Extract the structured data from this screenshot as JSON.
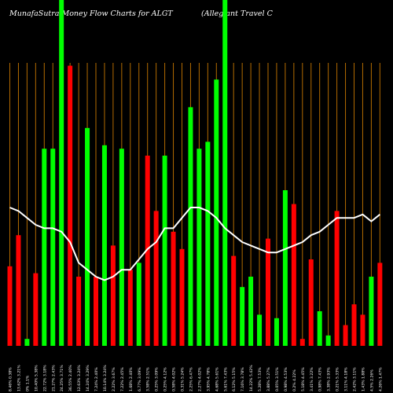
{
  "header": {
    "title": "MunafaSutra  Money Flow  Charts for ALGT",
    "company": "(Allegiant Travel C"
  },
  "chart_data": {
    "type": "bar",
    "title": "MunafaSutra  Money Flow  Charts for ALGT",
    "ylim": [
      0,
      100
    ],
    "grid": "vertical",
    "colors": {
      "up": "#00ff00",
      "down": "#ff0000",
      "grid": "#b36b00",
      "line": "#ffffff",
      "background": "#000000"
    },
    "categories": [
      "8.46% 0.38%",
      "13.62% 3.21%",
      "0% 1.1%",
      "10.40% 5.38%",
      "22.72% 3.18%",
      "21.27% 2.43%",
      "24.25% 3.71%",
      "36.55% 2.40%",
      "12.63% 3.24%",
      "14.24% 3.29%",
      "7.24% 2.40%",
      "10.14% 3.24%",
      "2.22% 3.67%",
      "7.22% 2.45%",
      "1.68% 2.40%",
      "6.77% 3.09%",
      "3.58% 2.51%",
      "0.25% 3.09%",
      "0.25% 4.12%",
      "0.58% 4.02%",
      "0.31% 5.24%",
      "2.25% 6.47%",
      "2.27% 4.02%",
      "3.95% 4.78%",
      "4.68% 5.61%",
      "5.61% 7.43%",
      "6.12% 5.15%",
      "7.16% 3.78%",
      "14.22% 5.42%",
      "5.28% 7.53%",
      "3.88% 5.27%",
      "0.05% 3.51%",
      "0.98% 4.53%",
      "0.2% 4.22%",
      "5.18% 4.45%",
      "3.41% 3.22%",
      "0.98% 7.43%",
      "3.38% 2.93%",
      "0.21% 5.33%",
      "3.11% 4.18%",
      "2.42% 3.11%",
      "1.43% 1.88%",
      "4.5% 2.26%",
      "4.26% 1.47%"
    ],
    "values": [
      23,
      32,
      2,
      21,
      57,
      57,
      100,
      81,
      20,
      63,
      20,
      58,
      29,
      57,
      22,
      24,
      55,
      39,
      55,
      33,
      28,
      69,
      57,
      59,
      77,
      100,
      26,
      17,
      20,
      9,
      31,
      8,
      45,
      41,
      2,
      25,
      10,
      3,
      39,
      6,
      12,
      9,
      20,
      24
    ],
    "bar_colors": [
      "red",
      "red",
      "green",
      "red",
      "green",
      "green",
      "green",
      "red",
      "red",
      "green",
      "red",
      "green",
      "red",
      "green",
      "red",
      "green",
      "red",
      "red",
      "green",
      "red",
      "red",
      "green",
      "green",
      "green",
      "green",
      "green",
      "red",
      "green",
      "green",
      "green",
      "red",
      "green",
      "green",
      "red",
      "red",
      "red",
      "green",
      "green",
      "red",
      "red",
      "red",
      "red",
      "green",
      "red"
    ],
    "series": [
      {
        "name": "",
        "values": [
          40,
          39,
          37,
          35,
          34,
          34,
          33,
          30,
          24,
          22,
          20,
          19,
          20,
          22,
          22,
          25,
          28,
          30,
          34,
          34,
          37,
          40,
          40,
          39,
          37,
          34,
          32,
          30,
          29,
          28,
          27,
          27,
          28,
          29,
          30,
          32,
          33,
          35,
          37,
          37,
          37,
          38,
          36,
          38
        ]
      }
    ]
  }
}
